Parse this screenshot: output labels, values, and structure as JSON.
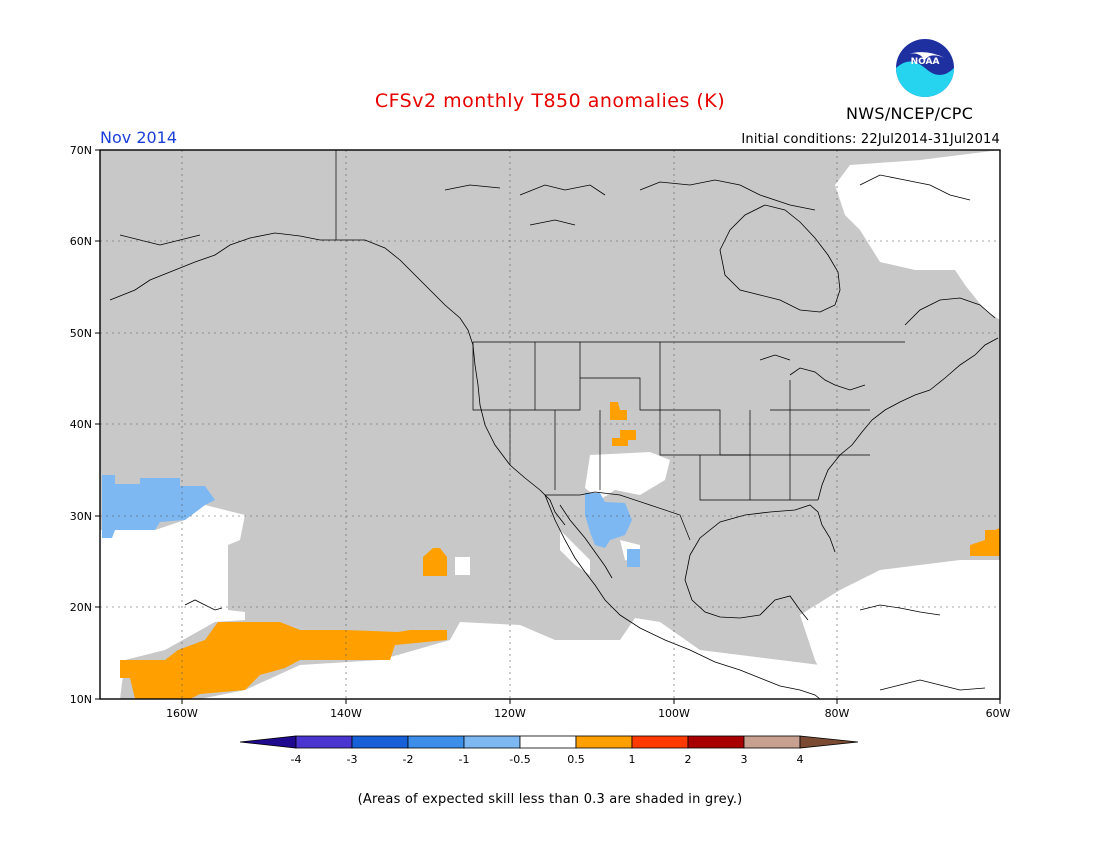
{
  "title": "CFSv2 monthly T850 anomalies (K)",
  "organization": "NWS/NCEP/CPC",
  "logo_text": "NOAA",
  "month": "Nov 2014",
  "initial_conditions": "Initial conditions: 22Jul2014-31Jul2014",
  "footnote": "(Areas of expected skill less than 0.3 are shaded in grey.)",
  "lat_labels": [
    "70N",
    "60N",
    "50N",
    "40N",
    "30N",
    "20N",
    "10N"
  ],
  "lon_labels": [
    "160W",
    "140W",
    "120W",
    "100W",
    "80W",
    "60W"
  ],
  "colorbar": {
    "labels": [
      "-4",
      "-3",
      "-2",
      "-1",
      "-0.5",
      "0.5",
      "1",
      "2",
      "3",
      "4"
    ],
    "colors": [
      "#1f0a8f",
      "#4a35d0",
      "#1860d8",
      "#3d8ee8",
      "#7db8f2",
      "#ffffff",
      "#ffa000",
      "#ff3a00",
      "#a80000",
      "#c8a090",
      "#7a4a32"
    ]
  },
  "colors": {
    "skill_grey": "#c8c8c8",
    "neutral": "#ffffff",
    "warm": "#ffa000",
    "cool": "#7db8f2"
  }
}
